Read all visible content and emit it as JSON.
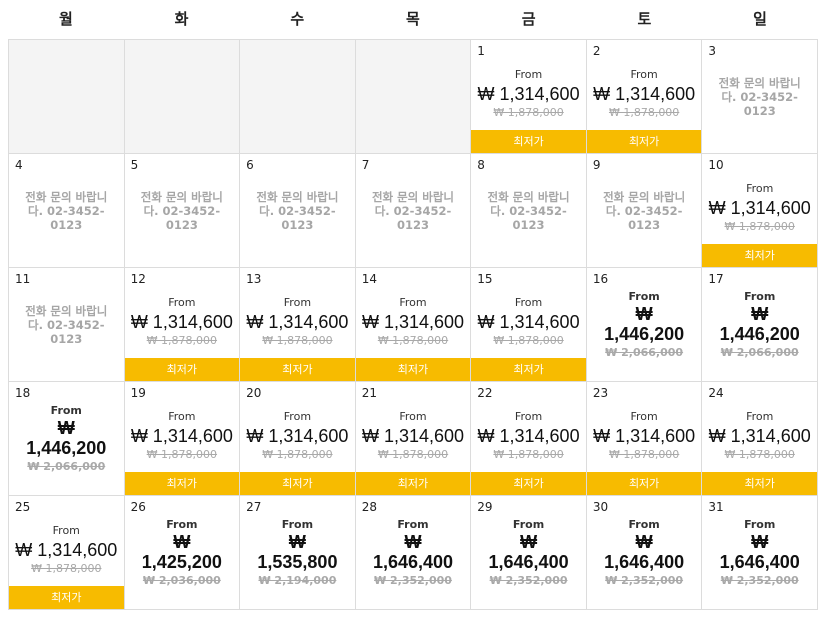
{
  "weekdays": [
    "월",
    "화",
    "수",
    "목",
    "금",
    "토",
    "일"
  ],
  "empty_leading_cells": 4,
  "labels": {
    "from": "From",
    "badge": "최저가"
  },
  "days": [
    {
      "day": "1",
      "type": "price",
      "price": "₩ 1,314,600",
      "original": "₩ 1,878,000",
      "badge": true
    },
    {
      "day": "2",
      "type": "price",
      "price": "₩ 1,314,600",
      "original": "₩ 1,878,000",
      "badge": true
    },
    {
      "day": "3",
      "type": "inquiry",
      "text": "전화 문의 바랍니다. 02-3452-0123"
    },
    {
      "day": "4",
      "type": "inquiry",
      "text": "전화 문의 바랍니다. 02-3452-0123"
    },
    {
      "day": "5",
      "type": "inquiry",
      "text": "전화 문의 바랍니다. 02-3452-0123"
    },
    {
      "day": "6",
      "type": "inquiry",
      "text": "전화 문의 바랍니다. 02-3452-0123"
    },
    {
      "day": "7",
      "type": "inquiry",
      "text": "전화 문의 바랍니다. 02-3452-0123"
    },
    {
      "day": "8",
      "type": "inquiry",
      "text": "전화 문의 바랍니다. 02-3452-0123"
    },
    {
      "day": "9",
      "type": "inquiry",
      "text": "전화 문의 바랍니다. 02-3452-0123"
    },
    {
      "day": "10",
      "type": "price",
      "price": "₩ 1,314,600",
      "original": "₩ 1,878,000",
      "badge": true
    },
    {
      "day": "11",
      "type": "inquiry",
      "text": "전화 문의 바랍니다. 02-3452-0123"
    },
    {
      "day": "12",
      "type": "price",
      "price": "₩ 1,314,600",
      "original": "₩ 1,878,000",
      "badge": true
    },
    {
      "day": "13",
      "type": "price",
      "price": "₩ 1,314,600",
      "original": "₩ 1,878,000",
      "badge": true
    },
    {
      "day": "14",
      "type": "price",
      "price": "₩ 1,314,600",
      "original": "₩ 1,878,000",
      "badge": true
    },
    {
      "day": "15",
      "type": "price",
      "price": "₩ 1,314,600",
      "original": "₩ 1,878,000",
      "badge": true
    },
    {
      "day": "16",
      "type": "price",
      "bold": true,
      "price": "₩ 1,446,200",
      "original": "₩ 2,066,000",
      "badge": false
    },
    {
      "day": "17",
      "type": "price",
      "bold": true,
      "price": "₩ 1,446,200",
      "original": "₩ 2,066,000",
      "badge": false
    },
    {
      "day": "18",
      "type": "price",
      "bold": true,
      "price": "₩ 1,446,200",
      "original": "₩ 2,066,000",
      "badge": false
    },
    {
      "day": "19",
      "type": "price",
      "price": "₩ 1,314,600",
      "original": "₩ 1,878,000",
      "badge": true
    },
    {
      "day": "20",
      "type": "price",
      "price": "₩ 1,314,600",
      "original": "₩ 1,878,000",
      "badge": true
    },
    {
      "day": "21",
      "type": "price",
      "price": "₩ 1,314,600",
      "original": "₩ 1,878,000",
      "badge": true
    },
    {
      "day": "22",
      "type": "price",
      "price": "₩ 1,314,600",
      "original": "₩ 1,878,000",
      "badge": true
    },
    {
      "day": "23",
      "type": "price",
      "price": "₩ 1,314,600",
      "original": "₩ 1,878,000",
      "badge": true
    },
    {
      "day": "24",
      "type": "price",
      "price": "₩ 1,314,600",
      "original": "₩ 1,878,000",
      "badge": true
    },
    {
      "day": "25",
      "type": "price",
      "price": "₩ 1,314,600",
      "original": "₩ 1,878,000",
      "badge": true
    },
    {
      "day": "26",
      "type": "price",
      "bold": true,
      "price": "₩ 1,425,200",
      "original": "₩ 2,036,000",
      "badge": false
    },
    {
      "day": "27",
      "type": "price",
      "bold": true,
      "price": "₩ 1,535,800",
      "original": "₩ 2,194,000",
      "badge": false
    },
    {
      "day": "28",
      "type": "price",
      "bold": true,
      "price": "₩ 1,646,400",
      "original": "₩ 2,352,000",
      "badge": false
    },
    {
      "day": "29",
      "type": "price",
      "bold": true,
      "price": "₩ 1,646,400",
      "original": "₩ 2,352,000",
      "badge": false
    },
    {
      "day": "30",
      "type": "price",
      "bold": true,
      "price": "₩ 1,646,400",
      "original": "₩ 2,352,000",
      "badge": false
    },
    {
      "day": "31",
      "type": "price",
      "bold": true,
      "price": "₩ 1,646,400",
      "original": "₩ 2,352,000",
      "badge": false
    }
  ]
}
